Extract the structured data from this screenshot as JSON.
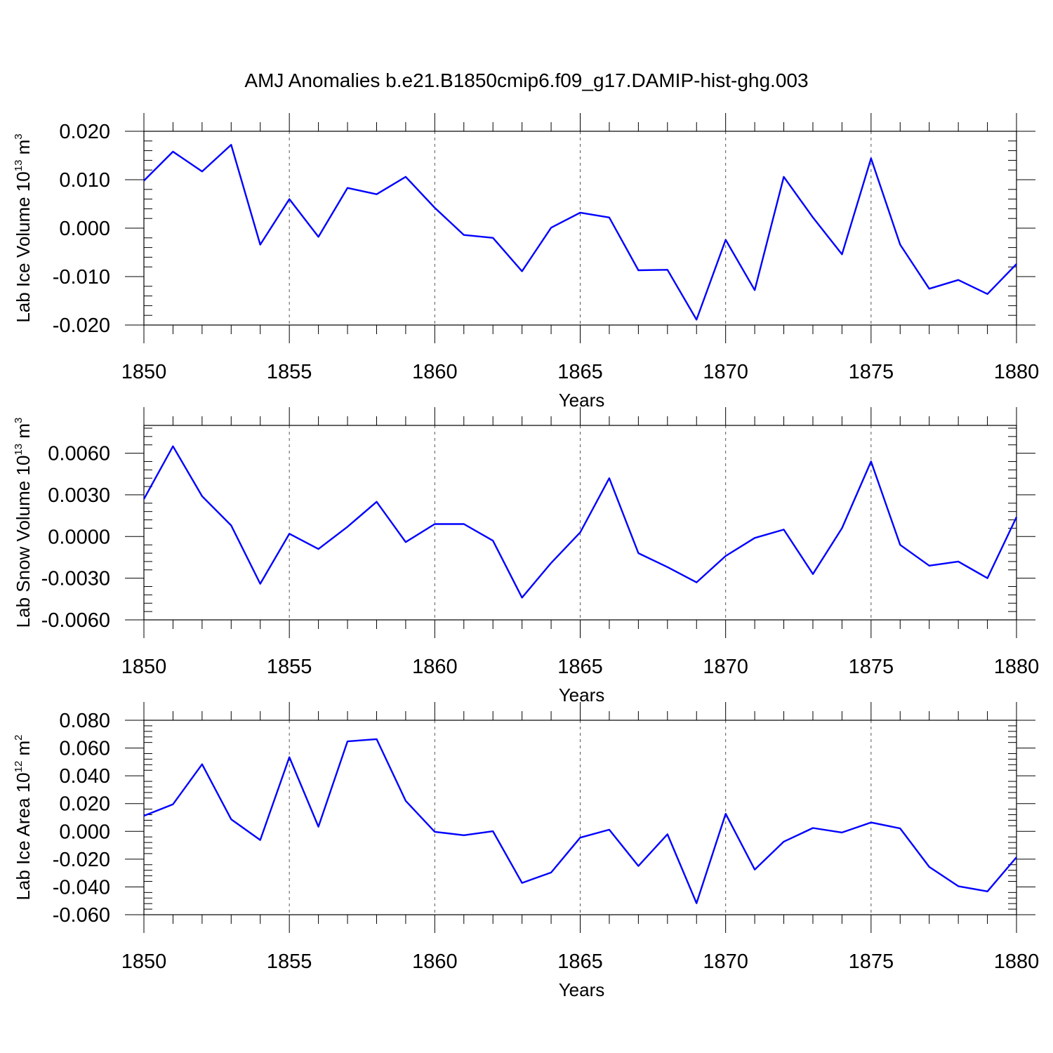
{
  "chart_data": {
    "title": "AMJ Anomalies b.e21.B1850cmip6.f09_g17.DAMIP-hist-ghg.003",
    "type": "line",
    "x": [
      1850,
      1851,
      1852,
      1853,
      1854,
      1855,
      1856,
      1857,
      1858,
      1859,
      1860,
      1861,
      1862,
      1863,
      1864,
      1865,
      1866,
      1867,
      1868,
      1869,
      1870,
      1871,
      1872,
      1873,
      1874,
      1875,
      1876,
      1877,
      1878,
      1879,
      1880
    ],
    "panels": [
      {
        "id": "ice-volume",
        "ylabel": "Lab Ice Volume 10",
        "ylabel_exp": "13",
        "ylabel_unit": " m",
        "ylabel_unit_exp": "3",
        "xlabel": "Years",
        "xlim": [
          1850,
          1880
        ],
        "ylim": [
          -0.02,
          0.02
        ],
        "yticks": [
          -0.02,
          -0.01,
          0,
          0.01,
          0.02
        ],
        "ytick_labels": [
          "-0.020",
          "-0.010",
          "0.000",
          "0.010",
          "0.020"
        ],
        "xticks": [
          1850,
          1855,
          1860,
          1865,
          1870,
          1875,
          1880
        ],
        "xtick_labels": [
          "1850",
          "1855",
          "1860",
          "1865",
          "1870",
          "1875",
          "1880"
        ],
        "color": "#0000ff",
        "values": [
          0.0098,
          0.0158,
          0.0117,
          0.0172,
          -0.0034,
          0.006,
          -0.0018,
          0.0083,
          0.007,
          0.0106,
          0.0042,
          -0.0014,
          -0.002,
          -0.0089,
          0.0001,
          0.0032,
          0.0022,
          -0.0087,
          -0.0086,
          -0.0189,
          -0.0024,
          -0.0128,
          0.0106,
          0.0022,
          -0.0054,
          0.0144,
          -0.0034,
          -0.0125,
          -0.0107,
          -0.0136,
          -0.0074
        ]
      },
      {
        "id": "snow-volume",
        "ylabel": "Lab Snow Volume 10",
        "ylabel_exp": "13",
        "ylabel_unit": " m",
        "ylabel_unit_exp": "3",
        "xlabel": "Years",
        "xlim": [
          1850,
          1880
        ],
        "ylim": [
          -0.006,
          0.008
        ],
        "yticks": [
          -0.006,
          -0.003,
          0,
          0.003,
          0.006
        ],
        "ytick_labels": [
          "-0.0060",
          "-0.0030",
          "0.0000",
          "0.0030",
          "0.0060"
        ],
        "xticks": [
          1850,
          1855,
          1860,
          1865,
          1870,
          1875,
          1880
        ],
        "xtick_labels": [
          "1850",
          "1855",
          "1860",
          "1865",
          "1870",
          "1875",
          "1880"
        ],
        "color": "#0000ff",
        "values": [
          0.0027,
          0.0065,
          0.0029,
          0.0008,
          -0.0034,
          0.0002,
          -0.0009,
          0.0007,
          0.0025,
          -0.0004,
          0.0009,
          0.0009,
          -0.0003,
          -0.0044,
          -0.0019,
          0.0003,
          0.0042,
          -0.0012,
          -0.0022,
          -0.0033,
          -0.0014,
          -0.0001,
          0.0005,
          -0.0027,
          0.0006,
          0.0054,
          -0.0006,
          -0.0021,
          -0.0018,
          -0.003,
          0.0014
        ]
      },
      {
        "id": "ice-area",
        "ylabel": "Lab Ice Area 10",
        "ylabel_exp": "12",
        "ylabel_unit": " m",
        "ylabel_unit_exp": "2",
        "xlabel": "Years",
        "xlim": [
          1850,
          1880
        ],
        "ylim": [
          -0.06,
          0.08
        ],
        "yticks": [
          -0.06,
          -0.04,
          -0.02,
          0,
          0.02,
          0.04,
          0.06,
          0.08
        ],
        "ytick_labels": [
          "-0.060",
          "-0.040",
          "-0.020",
          "0.000",
          "0.020",
          "0.040",
          "0.060",
          "0.080"
        ],
        "xticks": [
          1850,
          1855,
          1860,
          1865,
          1870,
          1875,
          1880
        ],
        "xtick_labels": [
          "1850",
          "1855",
          "1860",
          "1865",
          "1870",
          "1875",
          "1880"
        ],
        "color": "#0000ff",
        "values": [
          0.0112,
          0.0195,
          0.0483,
          0.0087,
          -0.0062,
          0.0534,
          0.0034,
          0.0648,
          0.0664,
          0.022,
          -0.0003,
          -0.0028,
          0.0001,
          -0.0371,
          -0.0296,
          -0.0045,
          0.0012,
          -0.0249,
          -0.0021,
          -0.0517,
          0.0127,
          -0.0275,
          -0.0074,
          0.0024,
          -0.0008,
          0.0064,
          0.0021,
          -0.0256,
          -0.0395,
          -0.0432,
          -0.0186
        ]
      }
    ]
  }
}
